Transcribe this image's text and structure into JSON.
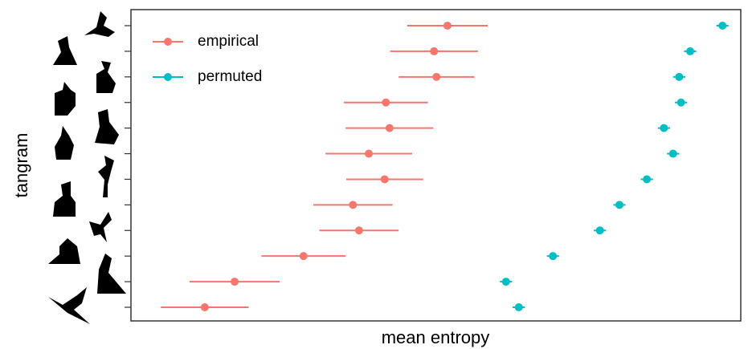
{
  "chart_data": {
    "type": "dot-errorbar",
    "x_label": "mean entropy",
    "y_label": "tangram",
    "categories": [
      null,
      null,
      null,
      null,
      null,
      null,
      null,
      null,
      null,
      null,
      null,
      null
    ],
    "xlim": [
      0,
      100
    ],
    "legend": "top-left",
    "series": [
      {
        "name": "empirical",
        "color": "#F8766D",
        "values": [
          51.9,
          49.7,
          50.1,
          41.8,
          42.4,
          39.0,
          41.6,
          36.4,
          37.4,
          28.3,
          17.0,
          12.1
        ],
        "error": [
          6.6,
          7.2,
          6.2,
          6.9,
          7.2,
          7.1,
          6.3,
          6.5,
          6.5,
          6.9,
          7.4,
          7.2
        ]
      },
      {
        "name": "permuted",
        "color": "#00BFC4",
        "values": [
          97.0,
          91.7,
          89.9,
          90.2,
          87.4,
          88.9,
          84.6,
          80.1,
          76.9,
          69.2,
          61.5,
          63.6
        ],
        "error": [
          1.0,
          1.0,
          1.0,
          1.0,
          1.0,
          1.0,
          1.0,
          1.0,
          1.0,
          1.0,
          1.0,
          1.0
        ]
      }
    ]
  }
}
